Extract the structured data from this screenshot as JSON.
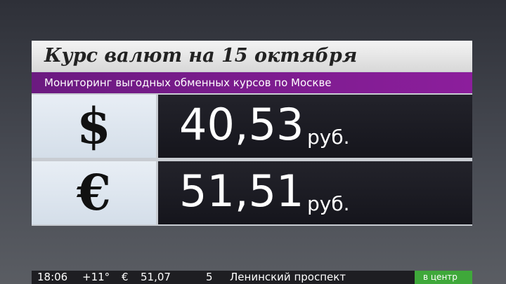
{
  "header": {
    "title": "Курс валют на 15 октября",
    "subtitle": "Мониторинг выгодных обменных курсов по Москве"
  },
  "rows": [
    {
      "symbol": "$",
      "rate": "40,53",
      "unit": "руб."
    },
    {
      "symbol": "€",
      "rate": "51,51",
      "unit": "руб."
    }
  ],
  "ticker": {
    "time": "18:06",
    "temperature": "+11°",
    "currency": "€",
    "rate": "51,07",
    "traffic": "5",
    "street": "Ленинский проспект",
    "direction": "в центр"
  }
}
